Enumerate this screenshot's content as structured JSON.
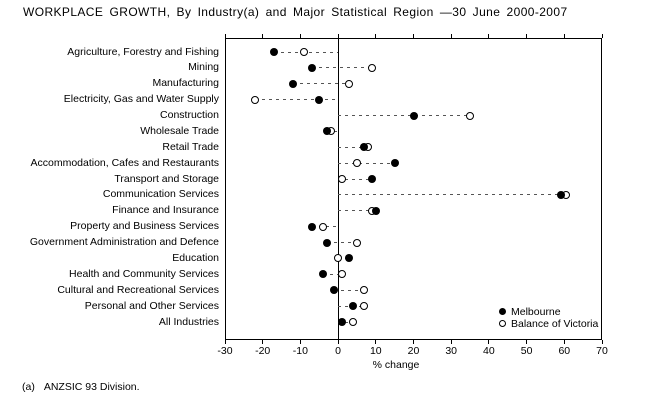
{
  "title": "WORKPLACE GROWTH, By Industry(a) and Major Statistical Region —30 June 2000-2007",
  "footnote": {
    "marker": "(a)",
    "text": "ANZSIC 93 Division."
  },
  "chart_data": {
    "type": "scatter",
    "subtype": "horizontal-dot-plot",
    "title": "WORKPLACE GROWTH, By Industry(a) and Major Statistical Region —30 June 2000-2007",
    "categories": [
      "Agriculture, Forestry and Fishing",
      "Mining",
      "Manufacturing",
      "Electricity, Gas and Water Supply",
      "Construction",
      "Wholesale Trade",
      "Retail Trade",
      "Accommodation, Cafes and Restaurants",
      "Transport and Storage",
      "Communication Services",
      "Finance and Insurance",
      "Property and Business Services",
      "Government Administration and Defence",
      "Education",
      "Health and Community Services",
      "Cultural and Recreational Services",
      "Personal and Other Services",
      "All Industries"
    ],
    "series": [
      {
        "name": "Melbourne",
        "marker": "filled-circle",
        "values": [
          -17,
          -7,
          -12,
          -5,
          20,
          -3,
          7,
          15,
          9,
          59,
          10,
          -7,
          -3,
          3,
          -4,
          -1,
          4,
          1
        ]
      },
      {
        "name": "Balance of Victoria",
        "marker": "open-circle",
        "values": [
          -9,
          9,
          3,
          -22,
          35,
          -2,
          8,
          5,
          1,
          60.5,
          9,
          -4,
          5,
          0,
          1,
          7,
          7,
          4
        ]
      }
    ],
    "xlabel": "% change",
    "xlim": [
      -30,
      70
    ],
    "xticks": [
      -30,
      -20,
      -10,
      0,
      10,
      20,
      30,
      40,
      50,
      60,
      70
    ],
    "grid": false,
    "zero_reference_line": true,
    "connector": "dashed line spanning from 0 through both series values",
    "legend_position": "inside-bottom-right",
    "colors": {
      "foreground": "#000000",
      "dash": "#555555",
      "background": "#ffffff"
    }
  }
}
